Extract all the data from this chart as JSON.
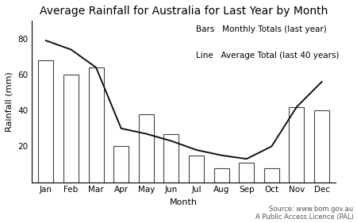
{
  "title": "Average Rainfall for Australia for Last Year by Month",
  "xlabel": "Month",
  "ylabel": "Rainfall (mm)",
  "months": [
    "Jan",
    "Feb",
    "Mar",
    "Apr",
    "May",
    "Jun",
    "Jul",
    "Aug",
    "Sep",
    "Oct",
    "Nov",
    "Dec"
  ],
  "bar_values": [
    68,
    60,
    64,
    20,
    38,
    27,
    15,
    8,
    11,
    8,
    42,
    40
  ],
  "line_values": [
    79,
    74,
    64,
    30,
    27,
    23,
    18,
    15,
    13,
    20,
    42,
    56
  ],
  "bar_color": "white",
  "bar_edgecolor": "#444444",
  "line_color": "#111111",
  "ylim": [
    0,
    90
  ],
  "yticks": [
    20,
    40,
    60,
    80
  ],
  "background_color": "white",
  "legend_text_bars": "Bars   Monthly Totals (last year)",
  "legend_text_line": "Line   Average Total (last 40 years)",
  "source_text": "Source: www.bom.gov.au\nA Public Access Licence (PAL)",
  "title_fontsize": 10,
  "axis_label_fontsize": 8,
  "tick_fontsize": 7.5,
  "legend_fontsize": 7.5,
  "source_fontsize": 6
}
